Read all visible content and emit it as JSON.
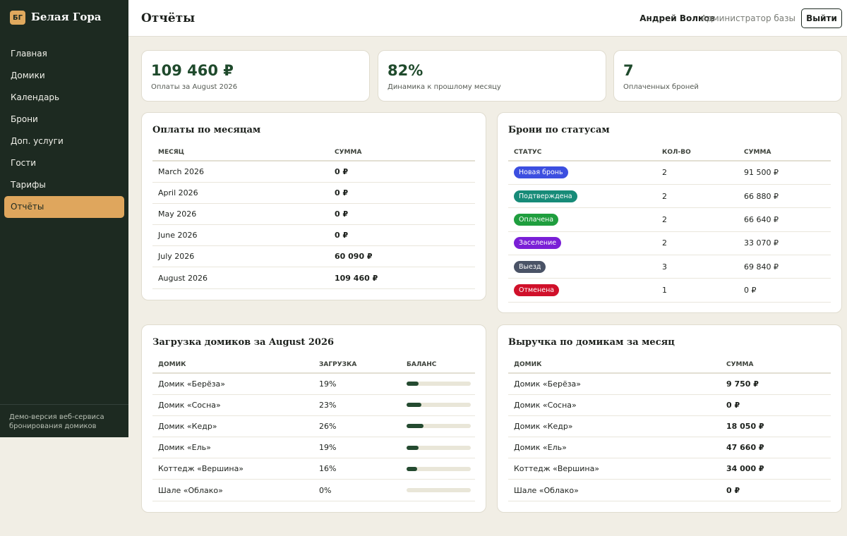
{
  "sidebar": {
    "logo": "БГ",
    "brand": "Белая Гора",
    "nav": [
      "Главная",
      "Домики",
      "Календарь",
      "Брони",
      "Доп. услуги",
      "Гости",
      "Тарифы",
      "Отчёты"
    ],
    "footer": "Демо-версия веб-сервиса бронирования домиков"
  },
  "header": {
    "title": "Отчёты",
    "user": "Андрей Волков",
    "role": "Администратор базы",
    "logout": "Выйти"
  },
  "stats": [
    {
      "value": "109 460 ₽",
      "label": "Оплаты за August 2026"
    },
    {
      "value": "82%",
      "label": "Динамика к прошлому месяцу"
    },
    {
      "value": "7",
      "label": "Оплаченных броней"
    }
  ],
  "payments": {
    "title": "Оплаты по месяцам",
    "columns": [
      "МЕСЯЦ",
      "СУММА"
    ],
    "rows": [
      [
        "March 2026",
        "0 ₽"
      ],
      [
        "April 2026",
        "0 ₽"
      ],
      [
        "May 2026",
        "0 ₽"
      ],
      [
        "June 2026",
        "0 ₽"
      ],
      [
        "July 2026",
        "60 090 ₽"
      ],
      [
        "August 2026",
        "109 460 ₽"
      ]
    ]
  },
  "statuses": {
    "title": "Брони по статусам",
    "columns": [
      "СТАТУС",
      "КОЛ-ВО",
      "СУММА"
    ],
    "rows": [
      [
        "Новая бронь",
        "2",
        "91 500 ₽"
      ],
      [
        "Подтверждена",
        "2",
        "66 880 ₽"
      ],
      [
        "Оплачена",
        "2",
        "66 640 ₽"
      ],
      [
        "Заселение",
        "2",
        "33 070 ₽"
      ],
      [
        "Выезд",
        "3",
        "69 840 ₽"
      ],
      [
        "Отменена",
        "1",
        "0 ₽"
      ]
    ]
  },
  "load": {
    "title": "Загрузка домиков за August 2026",
    "columns": [
      "ДОМИК",
      "ЗАГРУЗКА",
      "БАЛАНС"
    ],
    "rows": [
      [
        "Домик «Берёза»",
        "19%"
      ],
      [
        "Домик «Сосна»",
        "23%"
      ],
      [
        "Домик «Кедр»",
        "26%"
      ],
      [
        "Домик «Ель»",
        "19%"
      ],
      [
        "Коттедж «Вершина»",
        "16%"
      ],
      [
        "Шале «Облако»",
        "0%"
      ]
    ]
  },
  "revenue": {
    "title": "Выручка по домикам за месяц",
    "columns": [
      "ДОМИК",
      "СУММА"
    ],
    "rows": [
      [
        "Домик «Берёза»",
        "9 750 ₽"
      ],
      [
        "Домик «Сосна»",
        "0 ₽"
      ],
      [
        "Домик «Кедр»",
        "18 050 ₽"
      ],
      [
        "Домик «Ель»",
        "47 660 ₽"
      ],
      [
        "Коттедж «Вершина»",
        "34 000 ₽"
      ],
      [
        "Шале «Облако»",
        "0 ₽"
      ]
    ]
  }
}
